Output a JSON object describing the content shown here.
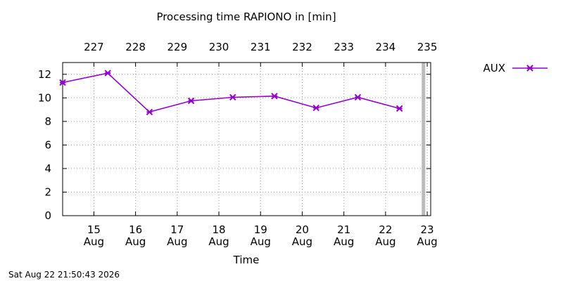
{
  "chart_data": {
    "type": "line",
    "title": "Processing time RAPIONO in [min]",
    "xlabel": "Time",
    "ylabel": "",
    "ylim": [
      0,
      13
    ],
    "y_ticks": [
      0,
      2,
      4,
      6,
      8,
      10,
      12
    ],
    "xlim": [
      "2026-08-14T06:00",
      "2026-08-23T02:00"
    ],
    "x_ticks": [
      {
        "date": "2026-08-15",
        "day": "15",
        "month": "Aug"
      },
      {
        "date": "2026-08-16",
        "day": "16",
        "month": "Aug"
      },
      {
        "date": "2026-08-17",
        "day": "17",
        "month": "Aug"
      },
      {
        "date": "2026-08-18",
        "day": "18",
        "month": "Aug"
      },
      {
        "date": "2026-08-19",
        "day": "19",
        "month": "Aug"
      },
      {
        "date": "2026-08-20",
        "day": "20",
        "month": "Aug"
      },
      {
        "date": "2026-08-21",
        "day": "21",
        "month": "Aug"
      },
      {
        "date": "2026-08-22",
        "day": "22",
        "month": "Aug"
      },
      {
        "date": "2026-08-23",
        "day": "23",
        "month": "Aug"
      }
    ],
    "x2_ticks": [
      "227",
      "228",
      "229",
      "230",
      "231",
      "232",
      "233",
      "234",
      "235"
    ],
    "grid": true,
    "legend_position": "top-right, outside plot",
    "now_marker": "2026-08-22T21:50",
    "now_marker_color": "#bbbbbb",
    "series": [
      {
        "name": "AUX",
        "color": "#9400d3",
        "marker": "x-cross",
        "x": [
          "2026-08-14T06:00",
          "2026-08-15T08:00",
          "2026-08-16T08:00",
          "2026-08-17T08:00",
          "2026-08-18T08:00",
          "2026-08-19T08:00",
          "2026-08-20T08:00",
          "2026-08-21T08:00",
          "2026-08-22T08:00"
        ],
        "values": [
          11.3,
          12.1,
          8.8,
          9.75,
          10.05,
          10.15,
          9.15,
          10.05,
          9.1
        ]
      }
    ]
  },
  "footer": {
    "timestamp": "Sat Aug 22 21:50:43 2026"
  }
}
